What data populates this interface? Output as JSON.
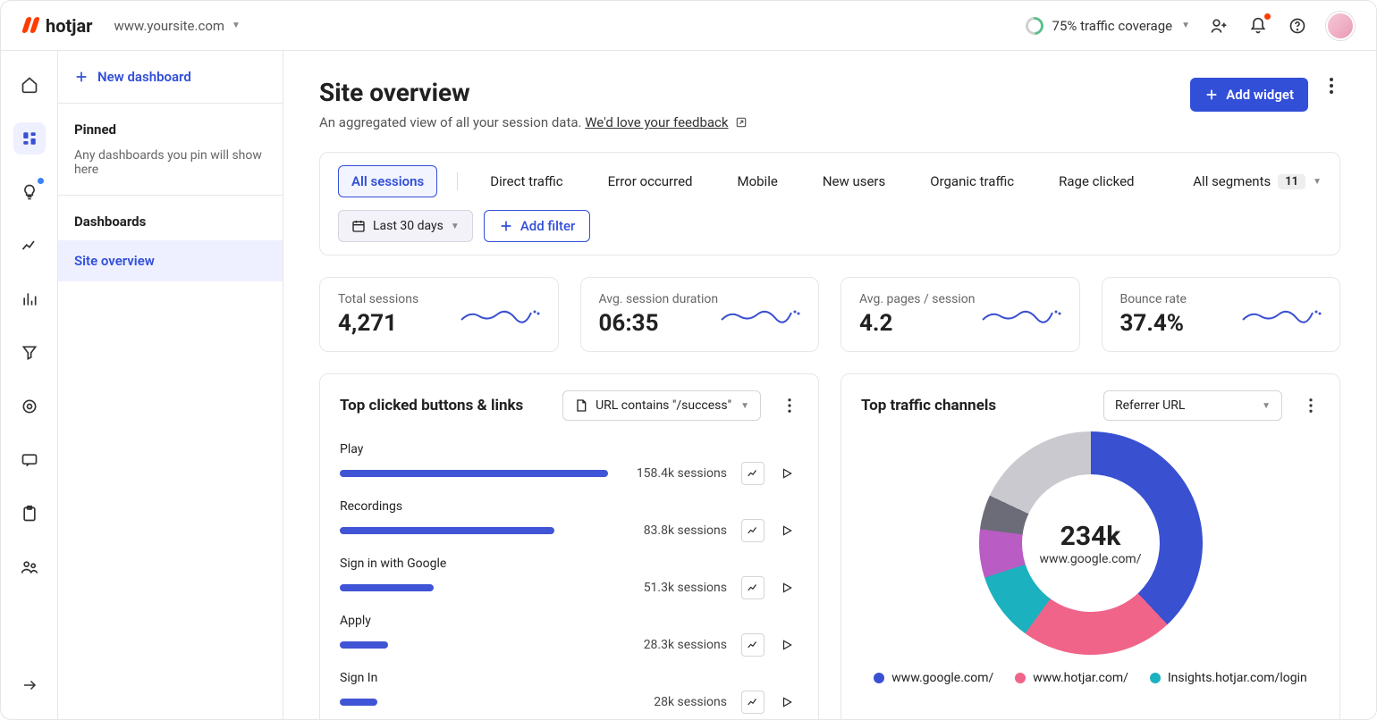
{
  "header": {
    "brand": "hotjar",
    "site": "www.yoursite.com",
    "traffic_label": "75% traffic coverage"
  },
  "sidebar": {
    "new_dashboard": "New dashboard",
    "pinned_title": "Pinned",
    "pinned_hint": "Any dashboards you pin will show here",
    "dashboards_title": "Dashboards",
    "item_site_overview": "Site overview"
  },
  "page": {
    "title": "Site overview",
    "subtitle_a": "An aggregated view of all your session data. ",
    "subtitle_link": "We'd love your feedback",
    "add_widget": "Add widget"
  },
  "filters": {
    "tabs": [
      "All sessions",
      "Direct traffic",
      "Error occurred",
      "Mobile",
      "New users",
      "Organic traffic",
      "Rage clicked"
    ],
    "all_segments": "All segments",
    "segments_count": "11",
    "date_range": "Last 30 days",
    "add_filter": "Add filter"
  },
  "metrics": [
    {
      "label": "Total sessions",
      "value": "4,271"
    },
    {
      "label": "Avg. session duration",
      "value": "06:35"
    },
    {
      "label": "Avg. pages / session",
      "value": "4.2"
    },
    {
      "label": "Bounce rate",
      "value": "37.4%"
    }
  ],
  "clicks_panel": {
    "title": "Top clicked buttons & links",
    "filter_label": "URL contains \"/success\"",
    "rows": [
      {
        "label": "Play",
        "sessions": "158.4k sessions",
        "pct": 100
      },
      {
        "label": "Recordings",
        "sessions": "83.8k sessions",
        "pct": 80
      },
      {
        "label": "Sign in with Google",
        "sessions": "51.3k sessions",
        "pct": 35
      },
      {
        "label": "Apply",
        "sessions": "28.3k sessions",
        "pct": 18
      },
      {
        "label": "Sign In",
        "sessions": "28k sessions",
        "pct": 14
      }
    ],
    "bar_color": "#4054d6"
  },
  "traffic_panel": {
    "title": "Top traffic channels",
    "select_label": "Referrer URL",
    "center_value": "234k",
    "center_label": "www.google.com/",
    "segments": [
      {
        "label": "www.google.com/",
        "color": "#3950d1",
        "pct": 38
      },
      {
        "label": "www.hotjar.com/",
        "color": "#f0648a",
        "pct": 22
      },
      {
        "label": "Insights.hotjar.com/login",
        "color": "#1cb1bf",
        "pct": 10
      },
      {
        "label": "other1",
        "color": "#b95cc4",
        "pct": 7,
        "hide_legend": true
      },
      {
        "label": "other2",
        "color": "#6c6c78",
        "pct": 5,
        "hide_legend": true
      },
      {
        "label": "remaining",
        "color": "#c9c9cf",
        "pct": 18,
        "hide_legend": true
      }
    ]
  },
  "colors": {
    "primary": "#324fd8",
    "border": "#e7e7e7"
  }
}
